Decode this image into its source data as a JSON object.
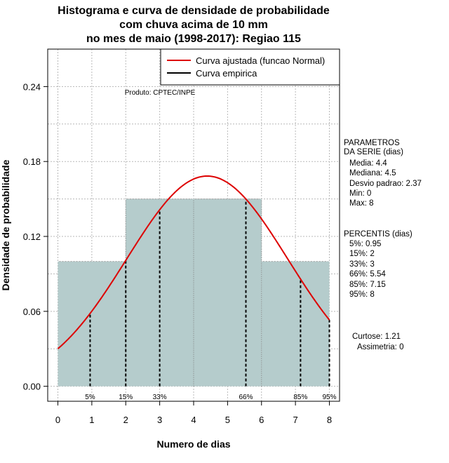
{
  "chart_data": {
    "type": "bar",
    "title": [
      "Histograma e curva de densidade de probabilidade",
      "com chuva acima de 10 mm",
      "no mes de maio (1998-2017): Regiao 115"
    ],
    "xlabel": "Numero de dias",
    "ylabel": "Densidade de probabilidade",
    "xlim": [
      -0.3,
      8.3
    ],
    "ylim": [
      -0.012,
      0.27
    ],
    "x_ticks": [
      0,
      1,
      2,
      3,
      4,
      5,
      6,
      7,
      8
    ],
    "y_ticks": [
      0.0,
      0.06,
      0.12,
      0.18,
      0.24
    ],
    "y_tick_labels": [
      "0.00",
      "0.06",
      "0.12",
      "0.18",
      "0.24"
    ],
    "bins": [
      {
        "x0": 0,
        "x1": 2,
        "density": 0.1
      },
      {
        "x0": 2,
        "x1": 4,
        "density": 0.15
      },
      {
        "x0": 4,
        "x1": 6,
        "density": 0.15
      },
      {
        "x0": 6,
        "x1": 8,
        "density": 0.1
      }
    ],
    "normal_curve": {
      "mean": 4.4,
      "sd": 2.37,
      "x_range": [
        0,
        8
      ],
      "color": "#dd0000"
    },
    "percentiles": [
      {
        "label": "5%",
        "x": 0.95
      },
      {
        "label": "15%",
        "x": 2
      },
      {
        "label": "33%",
        "x": 3
      },
      {
        "label": "66%",
        "x": 5.54
      },
      {
        "label": "85%",
        "x": 7.15
      },
      {
        "label": "95%",
        "x": 8
      }
    ],
    "legend": {
      "position": "top-right",
      "entries": [
        {
          "label": "Curva ajustada (funcao Normal)",
          "color": "#dd0000"
        },
        {
          "label": "Curva empirica",
          "color": "#000000"
        }
      ]
    },
    "bar_color": "#b5cccc",
    "grid": true,
    "annotation": "Produto: CPTEC/INPE"
  },
  "side_panel": {
    "params_title": [
      "PARAMETROS",
      "DA SERIE (dias)"
    ],
    "params": [
      "Media: 4.4",
      "Mediana: 4.5",
      "Desvio padrao: 2.37",
      "Min: 0",
      "Max: 8"
    ],
    "percentis_title": "PERCENTIS (dias)",
    "percentis": [
      "5%: 0.95",
      "15%: 2",
      "33%: 3",
      "66%: 5.54",
      "85%: 7.15",
      "95%: 8"
    ],
    "curtose": "Curtose: 1.21",
    "assimetria": "Assimetria: 0"
  }
}
